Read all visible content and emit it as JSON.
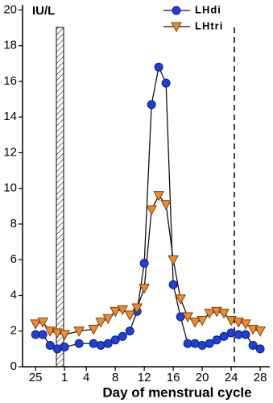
{
  "chart_data": {
    "type": "line",
    "y_label": "IU/L",
    "x_label": "Day of menstrual cycle",
    "x": [
      -3,
      -2,
      -1,
      0,
      1,
      3,
      5,
      6,
      7,
      8,
      9,
      10,
      11,
      12,
      13,
      14,
      15,
      16,
      17,
      18,
      19,
      20,
      21,
      22,
      23,
      24,
      25,
      26,
      27,
      28
    ],
    "series": [
      {
        "name": "LHdi",
        "color": "#1f3fd6",
        "marker": "circle",
        "values": [
          1.8,
          1.8,
          1.2,
          1.0,
          1.1,
          1.3,
          1.3,
          1.2,
          1.3,
          1.5,
          1.7,
          2.0,
          3.1,
          5.8,
          14.7,
          16.8,
          15.9,
          4.6,
          2.8,
          1.3,
          1.3,
          1.2,
          1.3,
          1.5,
          1.7,
          1.9,
          1.8,
          1.8,
          1.2,
          1.0
        ]
      },
      {
        "name": "LHtri",
        "color": "#f08a2c",
        "marker": "triangle-down",
        "values": [
          2.4,
          2.5,
          2.0,
          1.9,
          1.8,
          2.0,
          2.1,
          2.5,
          2.7,
          3.1,
          3.2,
          2.9,
          3.3,
          4.4,
          8.8,
          9.6,
          9.1,
          6.0,
          3.8,
          2.8,
          2.5,
          2.6,
          3.0,
          3.1,
          3.0,
          2.6,
          2.5,
          2.4,
          2.1,
          2.0
        ]
      }
    ],
    "xlim": [
      -4.8,
      29.1
    ],
    "xticks": [
      {
        "value": -3,
        "label": "25"
      },
      1,
      4,
      8,
      12,
      16,
      20,
      24,
      28
    ],
    "ylim": [
      0,
      20.2
    ],
    "yticks": [
      0,
      2,
      4,
      6,
      8,
      10,
      12,
      14,
      16,
      18,
      20
    ],
    "legend": "top-right"
  }
}
